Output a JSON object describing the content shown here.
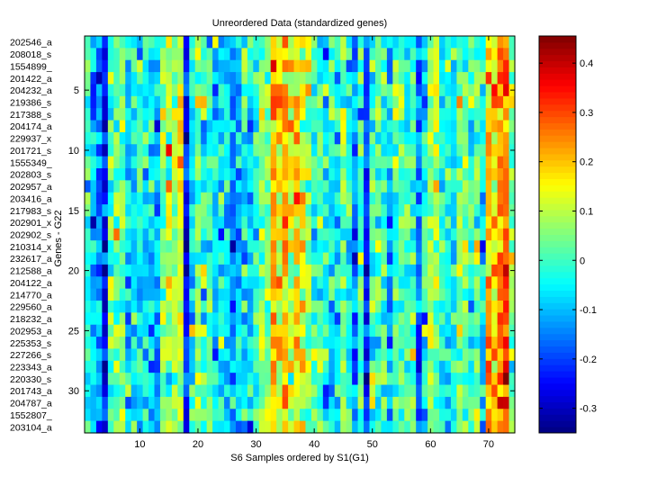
{
  "chart_data": {
    "type": "heatmap",
    "title": "Unreordered Data (standardized genes)",
    "xlabel": "S6 Samples ordered by S1(G1)",
    "ylabel": "Genes - G22",
    "n_samples": 74,
    "xticks": [
      10,
      20,
      30,
      40,
      50,
      60,
      70
    ],
    "yticks": [
      5,
      10,
      15,
      20,
      25,
      30
    ],
    "row_labels": [
      "202546_a",
      "208018_s",
      "1554899_",
      "201422_a",
      "204232_a",
      "219386_s",
      "217388_s",
      "204174_a",
      "229937_x",
      "201721_s",
      "1555349_",
      "202803_s",
      "202957_a",
      "203416_a",
      "217983_s",
      "202901_x",
      "202902_s",
      "210314_x",
      "232617_a",
      "212588_a",
      "204122_a",
      "214770_a",
      "229560_a",
      "218232_a",
      "202953_a",
      "225353_s",
      "227266_s",
      "223343_a",
      "220330_s",
      "201743_a",
      "204787_a",
      "1552807_",
      "203104_a"
    ],
    "column_means": [
      0,
      -0.1,
      -0.15,
      -0.25,
      0,
      0.05,
      0.05,
      -0.05,
      -0.05,
      -0.05,
      -0.04,
      -0.05,
      -0.1,
      0.05,
      0.1,
      0.1,
      0.1,
      -0.22,
      -0.05,
      0.05,
      0.02,
      0,
      -0.08,
      -0.05,
      -0.05,
      -0.15,
      -0.1,
      -0.05,
      -0.05,
      0,
      0.05,
      0.05,
      0.2,
      0.15,
      0.22,
      0.12,
      0.18,
      0.12,
      0.08,
      0,
      0,
      -0.05,
      -0.05,
      -0.05,
      0.03,
      -0.05,
      -0.15,
      0,
      -0.22,
      0,
      0.01,
      0.01,
      -0.1,
      0.02,
      0.02,
      0,
      0.03,
      -0.15,
      -0.05,
      0.07,
      0.07,
      -0.03,
      -0.03,
      -0.05,
      0.03,
      0.03,
      -0.03,
      0.05,
      -0.05,
      0.18,
      0.15,
      0.25,
      0.3,
      0.05
    ],
    "noise_sd": 0.07,
    "noise_seed": 22,
    "colormap": "jet",
    "clim": [
      -0.35,
      0.455
    ],
    "colorbar": {
      "ticks": [
        -0.3,
        -0.2,
        -0.1,
        0,
        0.1,
        0.2,
        0.3,
        0.4
      ],
      "tick_labels": [
        "-0.3",
        "-0.2",
        "-0.1",
        "0",
        "0.1",
        "0.2",
        "0.3",
        "0.4"
      ]
    }
  }
}
